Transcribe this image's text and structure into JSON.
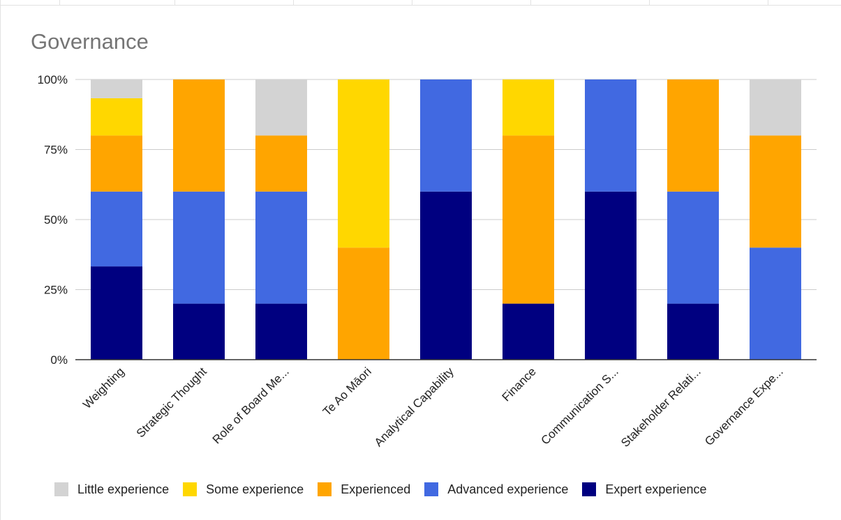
{
  "chart_data": {
    "type": "bar",
    "stacked": true,
    "percent_stacked": true,
    "title": "Governance",
    "categories": [
      "Weighting",
      "Strategic Thought",
      "Role of Board Me...",
      "Te Ao Māori",
      "Analytical Capability",
      "Finance",
      "Communication S...",
      "Stakeholder Relati...",
      "Governance Expe..."
    ],
    "series": [
      {
        "name": "Expert experience",
        "color": "#000080",
        "values": [
          33.3,
          20,
          20,
          0,
          60,
          20,
          60,
          20,
          0
        ]
      },
      {
        "name": "Advanced experience",
        "color": "#4169E1",
        "values": [
          26.7,
          40,
          40,
          0,
          40,
          0,
          40,
          40,
          40
        ]
      },
      {
        "name": "Experienced",
        "color": "#FFA500",
        "values": [
          20,
          40,
          20,
          40,
          0,
          60,
          0,
          40,
          40
        ]
      },
      {
        "name": "Some experience",
        "color": "#FFD700",
        "values": [
          13.3,
          0,
          0,
          60,
          0,
          20,
          0,
          0,
          0
        ]
      },
      {
        "name": "Little experience",
        "color": "#D3D3D3",
        "values": [
          6.7,
          0,
          20,
          0,
          0,
          0,
          0,
          0,
          20
        ]
      }
    ],
    "y_ticks": [
      "0%",
      "25%",
      "50%",
      "75%",
      "100%"
    ],
    "ylim": [
      0,
      100
    ],
    "grid": true,
    "legend_position": "bottom",
    "legend_order": [
      "Little experience",
      "Some experience",
      "Experienced",
      "Advanced experience",
      "Expert experience"
    ]
  }
}
